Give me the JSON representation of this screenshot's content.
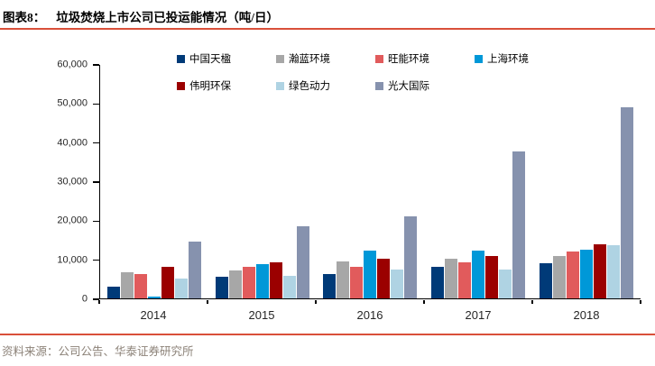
{
  "header": {
    "label": "图表8：",
    "title": "垃圾焚烧上市公司已投运能情况（吨/日）"
  },
  "footer": {
    "source": "资料来源：公司公告、华泰证券研究所"
  },
  "colors": {
    "divider_red": "#D9503A",
    "axis": "#000000",
    "tick_label": "#262626",
    "source_text": "#8C8278"
  },
  "chart_data": {
    "type": "bar",
    "title": "垃圾焚烧上市公司已投运能情况（吨/日）",
    "unit": "吨/日",
    "categories": [
      "2014",
      "2015",
      "2016",
      "2017",
      "2018"
    ],
    "series": [
      {
        "name": "中国天楹",
        "color": "#003A78",
        "values": [
          2900,
          5500,
          6300,
          8200,
          9000
        ]
      },
      {
        "name": "瀚蓝环境",
        "color": "#A7A7A7",
        "values": [
          6700,
          7300,
          9600,
          10200,
          11000
        ]
      },
      {
        "name": "旺能环境",
        "color": "#E15B5C",
        "values": [
          6300,
          8000,
          8200,
          9300,
          12100
        ]
      },
      {
        "name": "上海环境",
        "color": "#0098D8",
        "values": [
          400,
          8800,
          12200,
          12300,
          12500
        ]
      },
      {
        "name": "伟明环保",
        "color": "#9B0000",
        "values": [
          8100,
          9200,
          10100,
          11000,
          14000
        ]
      },
      {
        "name": "绿色动力",
        "color": "#AFD3E3",
        "values": [
          5200,
          5800,
          7500,
          7500,
          13600
        ]
      },
      {
        "name": "光大国际",
        "color": "#8692AE",
        "values": [
          14500,
          18500,
          21200,
          37700,
          49200
        ]
      }
    ],
    "ylim": [
      0,
      60000
    ],
    "ytick_step": 10000,
    "ytick_labels": [
      "0",
      "10,000",
      "20,000",
      "30,000",
      "40,000",
      "50,000",
      "60,000"
    ],
    "grid": false,
    "legend_position": "top-inside",
    "legend_rows": [
      [
        "中国天楹",
        "瀚蓝环境",
        "旺能环境",
        "上海环境"
      ],
      [
        "伟明环保",
        "绿色动力",
        "光大国际"
      ]
    ]
  }
}
